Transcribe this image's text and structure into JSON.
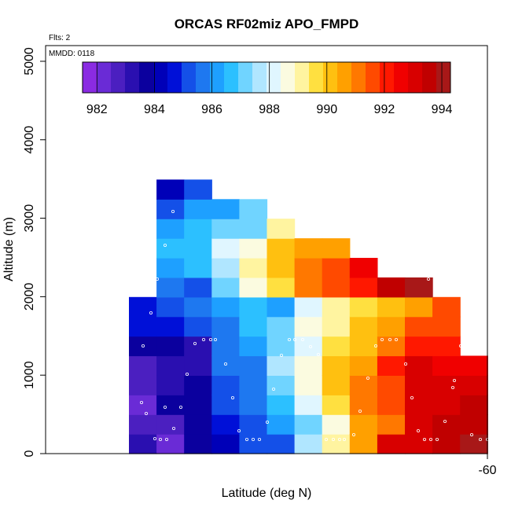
{
  "chart_data": {
    "type": "heatmap",
    "title": "ORCAS RF02miz APO_FMPD",
    "subtitle_flights": "Flts: 2",
    "subtitle_date": "MMDD: 0118",
    "xlabel": "Latitude (deg N)",
    "ylabel": "Altitude (m)",
    "x_tick_labels": [
      "-60"
    ],
    "y_tick_labels": [
      "0",
      "1000",
      "2000",
      "3000",
      "4000",
      "5000"
    ],
    "y_tick_values": [
      0,
      1000,
      2000,
      3000,
      4000,
      5000
    ],
    "ylim": [
      0,
      5200
    ],
    "colorbar": {
      "range": [
        981.5,
        994.3
      ],
      "tick_values": [
        982,
        984,
        986,
        988,
        990,
        992,
        994
      ],
      "tick_labels": [
        "982",
        "984",
        "986",
        "988",
        "990",
        "992",
        "994"
      ]
    },
    "palette": [
      "#8a2be2",
      "#6a2bd6",
      "#4b1fc0",
      "#2a0fb0",
      "#0b009e",
      "#0000b8",
      "#0010d8",
      "#1450e8",
      "#1e78f0",
      "#1ea0ff",
      "#2cc0ff",
      "#70d4ff",
      "#b0e6ff",
      "#e0f6ff",
      "#fbfbe0",
      "#fff4a0",
      "#ffe040",
      "#ffc010",
      "#ffa000",
      "#ff7800",
      "#ff4a00",
      "#ff1800",
      "#f00000",
      "#d80000",
      "#c00000",
      "#a81818"
    ],
    "columns": [
      {
        "col": 0,
        "cells": [
          [
            0,
            983.2
          ],
          [
            1,
            982.6
          ],
          [
            2,
            982.4
          ],
          [
            3,
            982.9
          ],
          [
            4,
            982.8
          ],
          [
            5,
            983.5
          ],
          [
            6,
            984.5
          ],
          [
            7,
            984.7
          ]
        ]
      },
      {
        "col": 1,
        "cells": [
          [
            0,
            982.1
          ],
          [
            1,
            982.8
          ],
          [
            2,
            983.7
          ],
          [
            3,
            983.4
          ],
          [
            4,
            983.1
          ],
          [
            5,
            983.8
          ],
          [
            6,
            984.6
          ],
          [
            7,
            985.3
          ],
          [
            8,
            985.6
          ],
          [
            9,
            986.3
          ],
          [
            10,
            986.6
          ],
          [
            11,
            986.2
          ],
          [
            12,
            985.4
          ],
          [
            13,
            984.4
          ]
        ]
      },
      {
        "col": 2,
        "cells": [
          [
            0,
            983.7
          ],
          [
            1,
            983.8
          ],
          [
            2,
            983.5
          ],
          [
            3,
            983.9
          ],
          [
            4,
            983.3
          ],
          [
            5,
            983.2
          ],
          [
            6,
            985.3
          ],
          [
            7,
            985.5
          ],
          [
            8,
            985.2
          ],
          [
            9,
            986.6
          ],
          [
            10,
            986.9
          ],
          [
            11,
            986.7
          ],
          [
            12,
            986.3
          ],
          [
            13,
            985.3
          ]
        ]
      },
      {
        "col": 3,
        "cells": [
          [
            0,
            984.4
          ],
          [
            1,
            984.9
          ],
          [
            2,
            985.3
          ],
          [
            3,
            985.1
          ],
          [
            4,
            985.6
          ],
          [
            5,
            985.5
          ],
          [
            6,
            985.8
          ],
          [
            7,
            986.0
          ],
          [
            8,
            987.4
          ],
          [
            9,
            987.8
          ],
          [
            10,
            988.0
          ],
          [
            11,
            987.2
          ],
          [
            12,
            986.4
          ]
        ]
      },
      {
        "col": 4,
        "cells": [
          [
            0,
            985.1
          ],
          [
            1,
            985.4
          ],
          [
            2,
            985.6
          ],
          [
            3,
            985.5
          ],
          [
            4,
            985.8
          ],
          [
            5,
            986.3
          ],
          [
            6,
            986.7
          ],
          [
            7,
            986.5
          ],
          [
            8,
            988.4
          ],
          [
            9,
            988.9
          ],
          [
            10,
            988.5
          ],
          [
            11,
            987.4
          ],
          [
            12,
            987.0
          ]
        ]
      },
      {
        "col": 5,
        "cells": [
          [
            0,
            985.4
          ],
          [
            1,
            986.3
          ],
          [
            2,
            986.7
          ],
          [
            3,
            987.0
          ],
          [
            4,
            987.5
          ],
          [
            5,
            987.1
          ],
          [
            6,
            987.2
          ],
          [
            7,
            986.4
          ],
          [
            8,
            989.6
          ],
          [
            9,
            990.1
          ],
          [
            10,
            990.3
          ],
          [
            11,
            989.2
          ]
        ]
      },
      {
        "col": 6,
        "cells": [
          [
            0,
            987.6
          ],
          [
            1,
            987.2
          ],
          [
            2,
            988.1
          ],
          [
            3,
            988.4
          ],
          [
            4,
            988.4
          ],
          [
            5,
            988.1
          ],
          [
            6,
            988.4
          ],
          [
            7,
            988.3
          ],
          [
            8,
            990.9
          ],
          [
            9,
            991.0
          ],
          [
            10,
            990.4
          ]
        ]
      },
      {
        "col": 7,
        "cells": [
          [
            0,
            989.2
          ],
          [
            1,
            988.8
          ],
          [
            2,
            989.8
          ],
          [
            3,
            990.3
          ],
          [
            4,
            989.9
          ],
          [
            5,
            989.6
          ],
          [
            6,
            989.3
          ],
          [
            7,
            988.9
          ],
          [
            8,
            991.5
          ],
          [
            9,
            991.5
          ],
          [
            10,
            990.6
          ]
        ]
      },
      {
        "col": 8,
        "cells": [
          [
            0,
            990.6
          ],
          [
            1,
            990.8
          ],
          [
            2,
            991.2
          ],
          [
            3,
            991.1
          ],
          [
            4,
            990.6
          ],
          [
            5,
            990.3
          ],
          [
            6,
            990.1
          ],
          [
            7,
            989.7
          ],
          [
            8,
            992.3
          ],
          [
            9,
            992.4
          ]
        ]
      },
      {
        "col": 9,
        "cells": [
          [
            0,
            993.1
          ],
          [
            1,
            991.3
          ],
          [
            2,
            991.4
          ],
          [
            3,
            991.5
          ],
          [
            4,
            992.0
          ],
          [
            5,
            991.2
          ],
          [
            6,
            990.6
          ],
          [
            7,
            990.3
          ],
          [
            8,
            993.8
          ]
        ]
      },
      {
        "col": 10,
        "cells": [
          [
            0,
            993.3
          ],
          [
            1,
            993.0
          ],
          [
            2,
            992.9
          ],
          [
            3,
            993.2
          ],
          [
            4,
            993.0
          ],
          [
            5,
            992.0
          ],
          [
            6,
            991.4
          ],
          [
            7,
            990.7
          ],
          [
            8,
            994.1
          ]
        ]
      },
      {
        "col": 11,
        "cells": [
          [
            0,
            993.6
          ],
          [
            1,
            993.4
          ],
          [
            2,
            993.2
          ],
          [
            3,
            993.0
          ],
          [
            4,
            992.6
          ],
          [
            5,
            992.3
          ],
          [
            6,
            991.8
          ],
          [
            7,
            991.5
          ]
        ]
      },
      {
        "col": 12,
        "cells": [
          [
            0,
            993.9
          ],
          [
            1,
            993.5
          ],
          [
            2,
            993.4
          ],
          [
            3,
            993.1
          ],
          [
            4,
            992.8
          ]
        ]
      }
    ],
    "grid": false,
    "legend": "top colorbar"
  }
}
